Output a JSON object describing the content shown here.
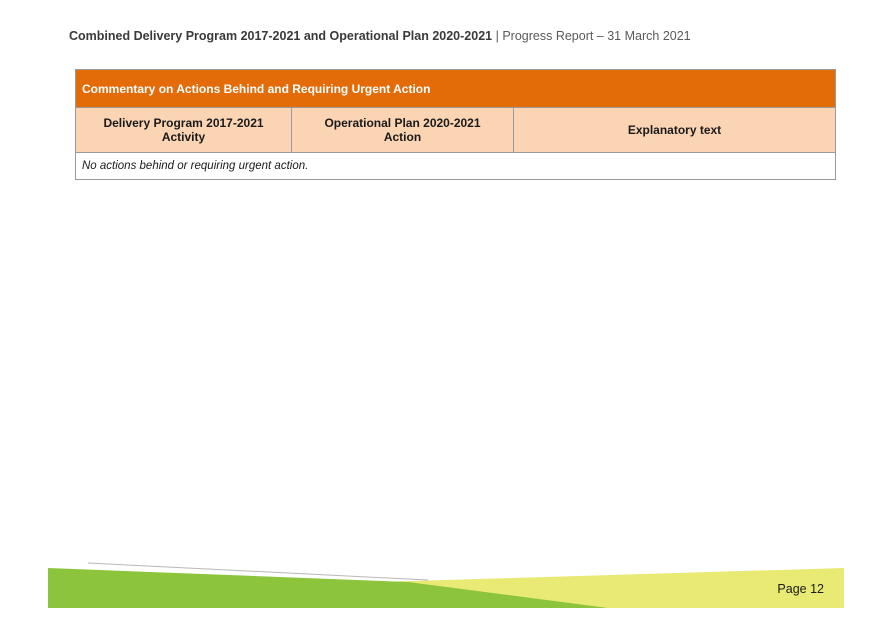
{
  "header": {
    "title_bold": "Combined Delivery Program 2017-2021 and Operational Plan 2020-2021",
    "separator": "|",
    "subtitle": "Progress Report – 31 March 2021"
  },
  "table": {
    "title": "Commentary on Actions Behind and Requiring Urgent Action",
    "columns": [
      {
        "line1": "Delivery Program 2017-2021",
        "line2": "Activity"
      },
      {
        "line1": "Operational Plan 2020-2021",
        "line2": "Action"
      },
      {
        "line1": "Explanatory text",
        "line2": ""
      }
    ],
    "empty_message": "No actions behind or requiring urgent action."
  },
  "footer": {
    "page_label": "Page 12"
  },
  "colors": {
    "title_bar": "#e36c09",
    "column_header": "#fbd4b4",
    "footer_green": "#8cc43c",
    "footer_yellow": "#e8ea73"
  }
}
